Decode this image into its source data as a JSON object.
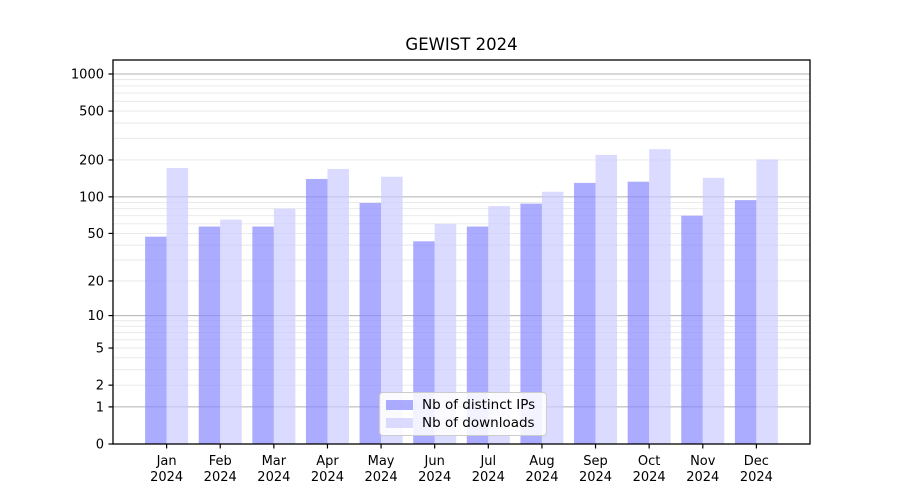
{
  "chart_data": {
    "type": "bar",
    "title": "GEWIST 2024",
    "categories": [
      "Jan",
      "Feb",
      "Mar",
      "Apr",
      "May",
      "Jun",
      "Jul",
      "Aug",
      "Sep",
      "Oct",
      "Nov",
      "Dec"
    ],
    "x_year_label": "2024",
    "series": [
      {
        "name": "Nb of distinct IPs",
        "color": "#8888ff",
        "values": [
          47,
          57,
          57,
          140,
          89,
          43,
          57,
          88,
          130,
          133,
          70,
          94
        ]
      },
      {
        "name": "Nb of downloads",
        "color": "#ccccff",
        "values": [
          172,
          65,
          80,
          169,
          146,
          60,
          84,
          110,
          220,
          245,
          143,
          202
        ]
      }
    ],
    "bar_alpha": 0.7,
    "y_axis": {
      "scale": "log1p",
      "tick_values": [
        0,
        1,
        2,
        5,
        10,
        20,
        50,
        100,
        200,
        500,
        1000
      ],
      "top_value": 1300
    },
    "grid": {
      "major_values": [
        1,
        10,
        100,
        1000
      ],
      "major_color": "#b0b0b0",
      "minor_color": "#e7e7e7"
    },
    "legend": {
      "position": "lower center"
    },
    "axis_color": "#000000"
  }
}
